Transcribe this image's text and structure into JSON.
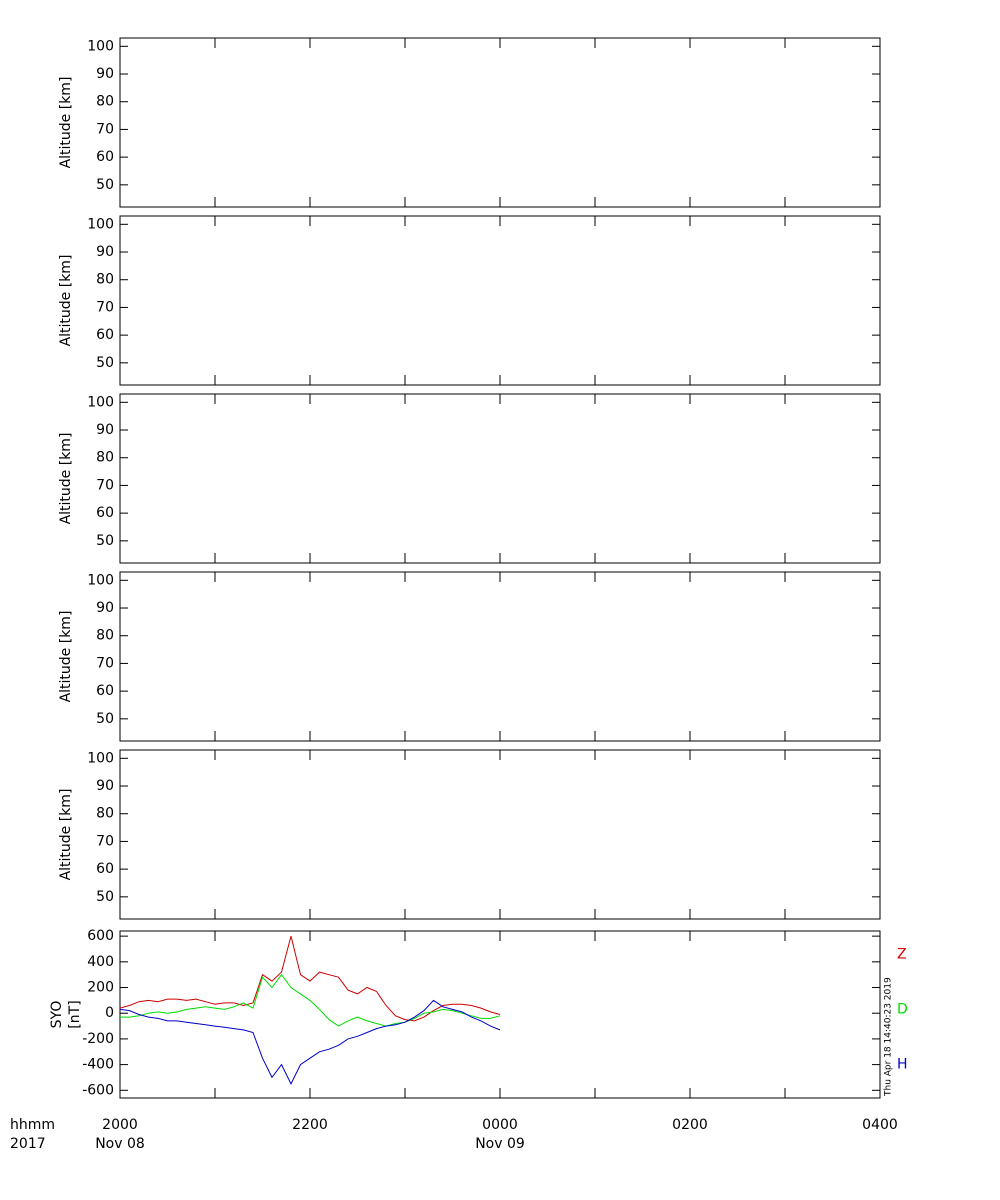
{
  "chart_data": [
    {
      "type": "line",
      "ylabel": [
        "Altitude [km]"
      ],
      "ylim": [
        42,
        103
      ],
      "yticks": [
        50,
        60,
        70,
        80,
        90,
        100
      ],
      "series": []
    },
    {
      "type": "line",
      "ylabel": [
        "Altitude [km]"
      ],
      "ylim": [
        42,
        103
      ],
      "yticks": [
        50,
        60,
        70,
        80,
        90,
        100
      ],
      "series": []
    },
    {
      "type": "line",
      "ylabel": [
        "Altitude [km]"
      ],
      "ylim": [
        42,
        103
      ],
      "yticks": [
        50,
        60,
        70,
        80,
        90,
        100
      ],
      "series": []
    },
    {
      "type": "line",
      "ylabel": [
        "Altitude [km]"
      ],
      "ylim": [
        42,
        103
      ],
      "yticks": [
        50,
        60,
        70,
        80,
        90,
        100
      ],
      "series": []
    },
    {
      "type": "line",
      "ylabel": [
        "Altitude [km]"
      ],
      "ylim": [
        42,
        103
      ],
      "yticks": [
        50,
        60,
        70,
        80,
        90,
        100
      ],
      "series": []
    },
    {
      "type": "line",
      "ylabel": [
        "SYO",
        "[nT]"
      ],
      "ylim": [
        -660,
        640
      ],
      "yticks": [
        -600,
        -400,
        -200,
        0,
        200,
        400,
        600
      ],
      "xlim": [
        20,
        28
      ],
      "xticks": [
        {
          "value": 20,
          "label": "2000"
        },
        {
          "value": 22,
          "label": "2200"
        },
        {
          "value": 24,
          "label": "0000"
        },
        {
          "value": 26,
          "label": "0200"
        },
        {
          "value": 28,
          "label": "0400"
        }
      ],
      "x_minor_ticks": [
        21,
        23,
        25,
        27
      ],
      "date_labels": [
        {
          "value": 20,
          "label": "Nov 08"
        },
        {
          "value": 24,
          "label": "Nov 09"
        }
      ],
      "x_row_labels": [
        "hhmm",
        "2017"
      ],
      "timestamp": "Thu Apr 18 14:40:23 2019",
      "x": [
        20.0,
        20.1,
        20.2,
        20.3,
        20.4,
        20.5,
        20.6,
        20.7,
        20.8,
        20.9,
        21.0,
        21.1,
        21.2,
        21.3,
        21.4,
        21.5,
        21.6,
        21.7,
        21.8,
        21.9,
        22.0,
        22.1,
        22.2,
        22.3,
        22.4,
        22.5,
        22.6,
        22.7,
        22.8,
        22.9,
        23.0,
        23.1,
        23.2,
        23.3,
        23.4,
        23.5,
        23.6,
        23.7,
        23.8,
        23.9,
        24.0
      ],
      "series": [
        {
          "name": "Z",
          "color": "#cc0000",
          "values": [
            40,
            60,
            90,
            100,
            90,
            110,
            110,
            100,
            110,
            90,
            70,
            80,
            80,
            60,
            80,
            300,
            250,
            320,
            600,
            300,
            250,
            320,
            300,
            280,
            180,
            150,
            200,
            170,
            60,
            -20,
            -50,
            -60,
            -30,
            20,
            60,
            70,
            70,
            60,
            40,
            10,
            -10
          ]
        },
        {
          "name": "D",
          "color": "#00dd00",
          "values": [
            -30,
            -30,
            -20,
            0,
            10,
            0,
            10,
            30,
            40,
            50,
            40,
            30,
            50,
            80,
            40,
            280,
            200,
            300,
            200,
            150,
            100,
            30,
            -50,
            -100,
            -60,
            -30,
            -60,
            -80,
            -100,
            -80,
            -70,
            -40,
            0,
            10,
            30,
            20,
            0,
            -20,
            -40,
            -40,
            -20
          ]
        },
        {
          "name": "H",
          "color": "#0000cc",
          "values": [
            30,
            20,
            -10,
            -30,
            -40,
            -60,
            -60,
            -70,
            -80,
            -90,
            -100,
            -110,
            -120,
            -130,
            -150,
            -350,
            -500,
            -400,
            -550,
            -400,
            -350,
            -300,
            -280,
            -250,
            -200,
            -180,
            -150,
            -120,
            -100,
            -90,
            -70,
            -30,
            20,
            100,
            50,
            30,
            10,
            -30,
            -60,
            -100,
            -130
          ]
        }
      ]
    }
  ]
}
